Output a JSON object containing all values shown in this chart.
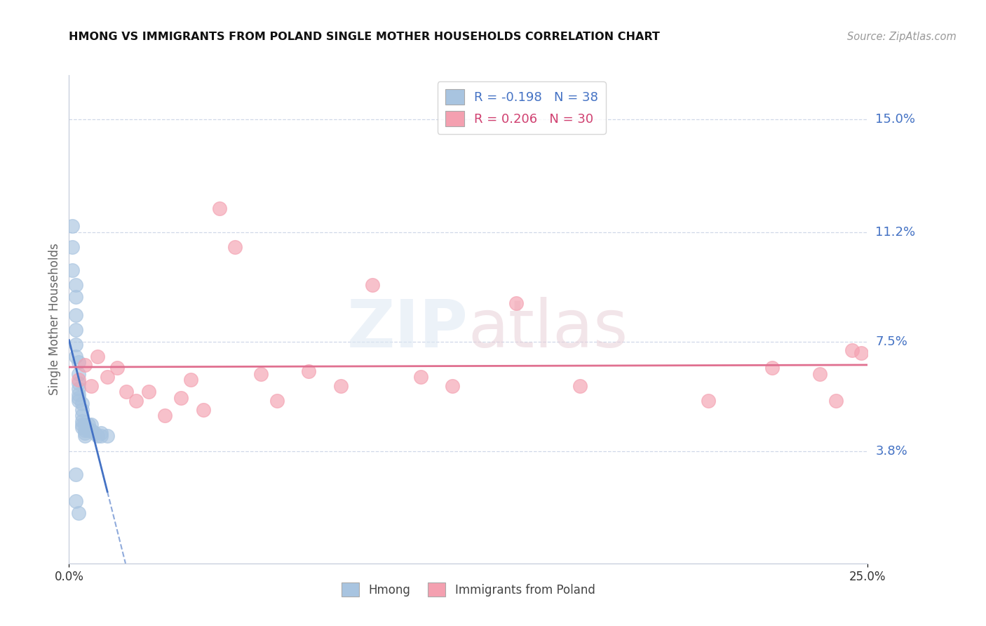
{
  "title": "HMONG VS IMMIGRANTS FROM POLAND SINGLE MOTHER HOUSEHOLDS CORRELATION CHART",
  "source": "Source: ZipAtlas.com",
  "ylabel": "Single Mother Households",
  "ytick_labels": [
    "3.8%",
    "7.5%",
    "11.2%",
    "15.0%"
  ],
  "ytick_values": [
    0.038,
    0.075,
    0.112,
    0.15
  ],
  "xlim": [
    0.0,
    0.25
  ],
  "ylim": [
    0.0,
    0.165
  ],
  "legend_r_hmong": "-0.198",
  "legend_n_hmong": "38",
  "legend_r_poland": "0.206",
  "legend_n_poland": "30",
  "hmong_color": "#a8c4e0",
  "poland_color": "#f4a0b0",
  "hmong_line_color": "#4472c4",
  "poland_line_color": "#e07090",
  "tick_label_color": "#4472c4",
  "background_color": "#ffffff",
  "grid_color": "#d0d8e8",
  "spine_color": "#c0c8d8",
  "hmong_x": [
    0.001,
    0.001,
    0.001,
    0.002,
    0.002,
    0.002,
    0.002,
    0.002,
    0.002,
    0.003,
    0.003,
    0.003,
    0.003,
    0.003,
    0.003,
    0.003,
    0.004,
    0.004,
    0.004,
    0.004,
    0.004,
    0.004,
    0.005,
    0.005,
    0.005,
    0.005,
    0.006,
    0.006,
    0.007,
    0.007,
    0.008,
    0.009,
    0.01,
    0.01,
    0.012,
    0.002,
    0.002,
    0.003
  ],
  "hmong_y": [
    0.114,
    0.107,
    0.099,
    0.094,
    0.09,
    0.084,
    0.079,
    0.074,
    0.07,
    0.068,
    0.064,
    0.061,
    0.059,
    0.057,
    0.056,
    0.055,
    0.054,
    0.052,
    0.05,
    0.048,
    0.047,
    0.046,
    0.047,
    0.045,
    0.044,
    0.043,
    0.047,
    0.045,
    0.047,
    0.045,
    0.044,
    0.043,
    0.044,
    0.043,
    0.043,
    0.03,
    0.021,
    0.017
  ],
  "poland_x": [
    0.003,
    0.005,
    0.007,
    0.009,
    0.012,
    0.015,
    0.018,
    0.021,
    0.025,
    0.03,
    0.035,
    0.038,
    0.042,
    0.047,
    0.052,
    0.06,
    0.065,
    0.075,
    0.085,
    0.095,
    0.11,
    0.12,
    0.14,
    0.16,
    0.2,
    0.22,
    0.235,
    0.24,
    0.245,
    0.248
  ],
  "poland_y": [
    0.062,
    0.067,
    0.06,
    0.07,
    0.063,
    0.066,
    0.058,
    0.055,
    0.058,
    0.05,
    0.056,
    0.062,
    0.052,
    0.12,
    0.107,
    0.064,
    0.055,
    0.065,
    0.06,
    0.094,
    0.063,
    0.06,
    0.088,
    0.06,
    0.055,
    0.066,
    0.064,
    0.055,
    0.072,
    0.071
  ]
}
